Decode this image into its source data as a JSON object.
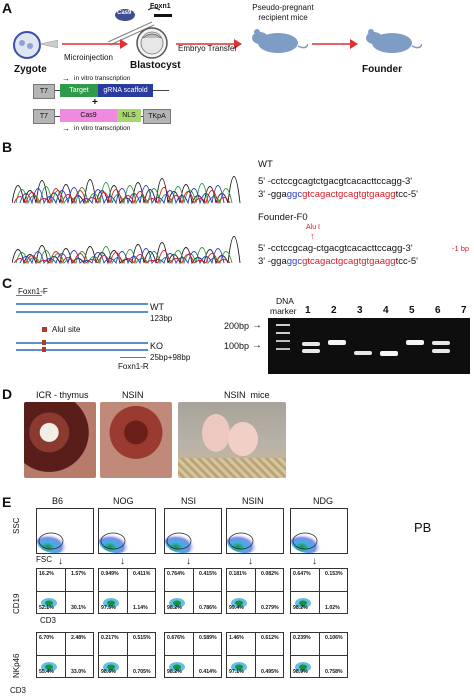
{
  "panels": {
    "a": "A",
    "b": "B",
    "c": "C",
    "d": "D",
    "e": "E"
  },
  "panel_a": {
    "cas9": "Cas9",
    "foxn1": "Foxn1",
    "pseudo_line1": "Pseudo-pregnant",
    "pseudo_line2": "recipient mice",
    "microinjection": "Microinjection",
    "embryo_transfer": "Embryo Transfer",
    "zygote": "Zygote",
    "blastocyst": "Blastocyst",
    "founder": "Founder",
    "ivt_top": "in vitro transcription",
    "ivt_bottom": "in vitro transcription",
    "construct1": {
      "t7": "T7",
      "target": "Target",
      "scaffold": "gRNA scaffold"
    },
    "plus": "+",
    "construct2": {
      "t7": "T7",
      "cas9": "Cas9",
      "nls": "NLS",
      "tkpa": "TKpA"
    },
    "colors": {
      "target": "#2f9a4a",
      "scaffold": "#2a3ba0",
      "cas9": "#f08ae0",
      "nls": "#a6d76b",
      "grey": "#b5b5b5",
      "arrow": "#e03030"
    }
  },
  "panel_b": {
    "wt_label": "WT",
    "wt_seq1": "5' -cctccgcagtctgacgtcacacttccagg-3'",
    "wt_seq2_pre": "3' -gga",
    "wt_seq2_blue": "ggc",
    "wt_seq2_red": "gtcagactgcagtgtgaagg",
    "wt_seq2_post": "tcc-5'",
    "f0_label": "Founder-F0",
    "alu": "Alu I",
    "f0_seq1": "5' -cctccgcag-ctgacgtcacacttccagg-3'",
    "f0_seq2_pre": "3' -gga",
    "f0_seq2_blue": "ggc",
    "f0_seq2_red": "gtcagactgcagtgtgaagg",
    "f0_seq2_post": "tcc-5'",
    "del": "-1 bp"
  },
  "panel_c": {
    "foxn1f": "Foxn1-F",
    "wt": "WT",
    "wt_bp": "123bp",
    "alu_site": "AluI site",
    "ko": "KO",
    "ko_bp": "25bp+98bp",
    "foxn1r": "Foxn1-R",
    "dna": "DNA",
    "marker": "marker",
    "bp200": "200bp",
    "bp100": "100bp",
    "lanes": [
      "1",
      "2",
      "3",
      "4",
      "5",
      "6",
      "7"
    ]
  },
  "panel_d": {
    "icr": "ICR - thymus",
    "nsin": "NSIN",
    "nsin_mice": "NSIN  mice"
  },
  "panel_e": {
    "strains": [
      "B6",
      "NOG",
      "NSI",
      "NSIN",
      "NDG"
    ],
    "pb": "PB",
    "ssc": "SSC",
    "fsc": "FSC",
    "cd19": "CD19",
    "cd3a": "CD3",
    "nkp46": "NKp46",
    "cd3b": "CD3",
    "row2": [
      [
        "16.2%",
        "1.57%",
        "52.1%",
        "30.1%"
      ],
      [
        "0.949%",
        "0.411%",
        "97.5%",
        "1.14%"
      ],
      [
        "0.764%",
        "0.415%",
        "98.2%",
        "0.786%"
      ],
      [
        "0.181%",
        "0.082%",
        "99.4%",
        "0.279%"
      ],
      [
        "0.647%",
        "0.153%",
        "98.2%",
        "1.02%"
      ]
    ],
    "row3": [
      [
        "6.70%",
        "2.48%",
        "55.4%",
        "33.0%"
      ],
      [
        "0.217%",
        "0.515%",
        "98.6%",
        "0.705%"
      ],
      [
        "0.676%",
        "0.589%",
        "98.2%",
        "0.414%"
      ],
      [
        "1.46%",
        "0.612%",
        "97.1%",
        "0.495%"
      ],
      [
        "0.239%",
        "0.106%",
        "98.9%",
        "0.758%"
      ]
    ]
  }
}
